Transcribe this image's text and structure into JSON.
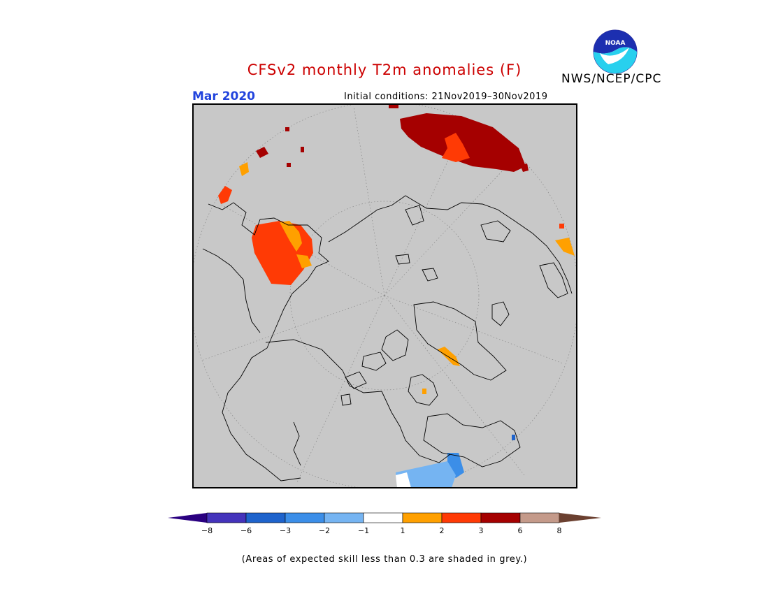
{
  "title": "CFSv2 monthly T2m anomalies (F)",
  "month_label": "Mar 2020",
  "initial_conditions": "Initial conditions: 21Nov2019–30Nov2019",
  "agency": "NWS/NCEP/CPC",
  "logo_text": "NOAA",
  "footnote": "(Areas of expected skill less than 0.3 are shaded in grey.)",
  "colors": {
    "title": "#cc0000",
    "month": "#2244dd",
    "map_background": "#c8c8c8",
    "coast": "#000000"
  },
  "legend": {
    "tick_labels": [
      "−8",
      "−6",
      "−3",
      "−2",
      "−1",
      "1",
      "2",
      "3",
      "6",
      "8"
    ],
    "bins": [
      {
        "color": "#2a0080"
      },
      {
        "color": "#4433bb"
      },
      {
        "color": "#1e63cc"
      },
      {
        "color": "#3b8ee8"
      },
      {
        "color": "#75b4f2"
      },
      {
        "color": "#ffffff"
      },
      {
        "color": "#ffa000"
      },
      {
        "color": "#ff3a05"
      },
      {
        "color": "#a50000"
      },
      {
        "color": "#c49a8a"
      },
      {
        "color": "#6b4030"
      }
    ]
  }
}
